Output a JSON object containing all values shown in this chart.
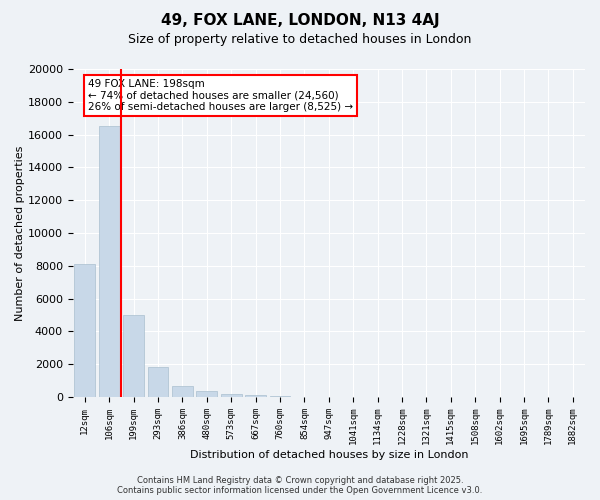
{
  "title": "49, FOX LANE, LONDON, N13 4AJ",
  "subtitle": "Size of property relative to detached houses in London",
  "xlabel": "Distribution of detached houses by size in London",
  "ylabel": "Number of detached properties",
  "bar_values": [
    8100,
    16500,
    5000,
    1850,
    700,
    350,
    175,
    100,
    50,
    30,
    0,
    0,
    0,
    0,
    0,
    0,
    0,
    0,
    0,
    0,
    0
  ],
  "bar_labels": [
    "12sqm",
    "106sqm",
    "199sqm",
    "293sqm",
    "386sqm",
    "480sqm",
    "573sqm",
    "667sqm",
    "760sqm",
    "854sqm",
    "947sqm",
    "1041sqm",
    "1134sqm",
    "1228sqm",
    "1321sqm",
    "1415sqm",
    "1508sqm",
    "1602sqm",
    "1695sqm",
    "1789sqm",
    "1882sqm"
  ],
  "bar_color": "#c8d8e8",
  "bar_edge_color": "#aabfcf",
  "ylim": [
    0,
    20000
  ],
  "yticks": [
    0,
    2000,
    4000,
    6000,
    8000,
    10000,
    12000,
    14000,
    16000,
    18000,
    20000
  ],
  "annotation_text": "49 FOX LANE: 198sqm\n← 74% of detached houses are smaller (24,560)\n26% of semi-detached houses are larger (8,525) →",
  "footer": "Contains HM Land Registry data © Crown copyright and database right 2025.\nContains public sector information licensed under the Open Government Licence v3.0.",
  "bg_color": "#eef2f6",
  "plot_bg_color": "#eef2f6",
  "grid_color": "#ffffff"
}
